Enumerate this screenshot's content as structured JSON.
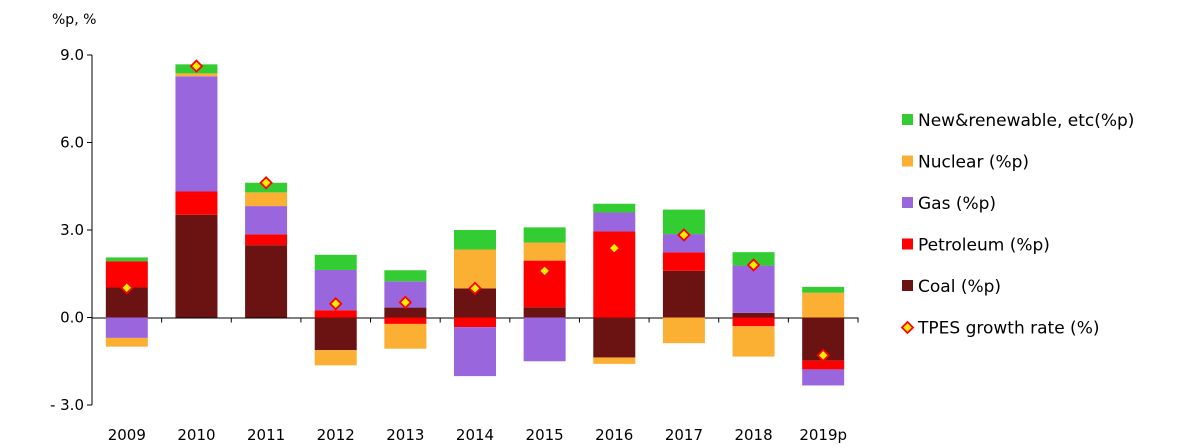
{
  "chart_data": {
    "type": "bar",
    "stacked": true,
    "unit_label": "%p, %",
    "categories": [
      "2009",
      "2010",
      "2011",
      "2012",
      "2013",
      "2014",
      "2015",
      "2016",
      "2017",
      "2018",
      "2019p"
    ],
    "yticks": [
      "9.0",
      "6.0",
      "3.0",
      "0.0",
      "- 3.0"
    ],
    "ylim": [
      -3,
      9
    ],
    "series": [
      {
        "name": "New&renewable, etc(%p)",
        "color": "#33cc33",
        "values": [
          0.13,
          0.31,
          0.33,
          0.52,
          0.38,
          0.67,
          0.52,
          0.3,
          0.84,
          0.46,
          0.2
        ]
      },
      {
        "name": "Nuclear (%p)",
        "color": "#fbb034",
        "values": [
          -0.3,
          0.1,
          0.47,
          -0.52,
          -0.85,
          1.33,
          0.62,
          -0.22,
          -0.88,
          -1.04,
          0.85
        ]
      },
      {
        "name": "Gas (%p)",
        "color": "#9966dd",
        "values": [
          -0.7,
          3.95,
          0.97,
          1.38,
          0.9,
          -1.68,
          -1.5,
          0.65,
          0.63,
          1.62,
          -0.55
        ]
      },
      {
        "name": "Petroleum (%p)",
        "color": "#ff0000",
        "values": [
          0.9,
          0.8,
          0.37,
          0.25,
          -0.22,
          -0.33,
          1.6,
          2.95,
          0.63,
          -0.3,
          -0.3
        ]
      },
      {
        "name": "Coal (%p)",
        "color": "#6b1212",
        "values": [
          1.03,
          3.52,
          2.48,
          -1.12,
          0.34,
          1.0,
          0.35,
          -1.37,
          1.6,
          0.16,
          -1.48
        ]
      }
    ],
    "line": {
      "name": "TPES growth rate (%)",
      "values": [
        1.02,
        8.62,
        4.62,
        0.47,
        0.52,
        1.0,
        1.6,
        2.38,
        2.83,
        1.8,
        -1.3
      ]
    }
  }
}
